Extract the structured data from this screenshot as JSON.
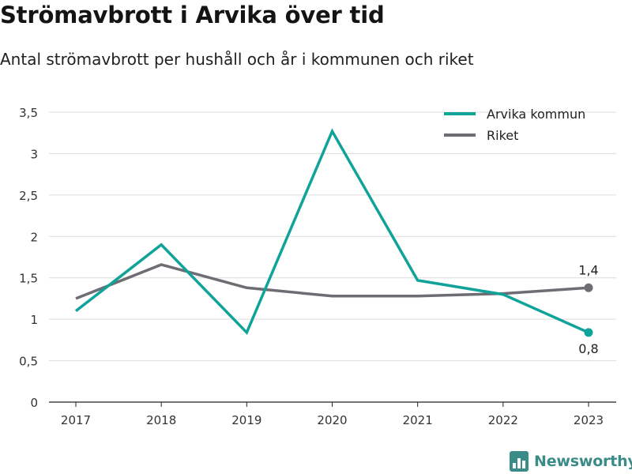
{
  "header": {
    "title": "Strömavbrott i Arvika över tid",
    "subtitle": "Antal strömavbrott per hushåll och år i kommunen och riket"
  },
  "brand": {
    "name": "Newsworthy",
    "icon": "bar-chart-logo-icon",
    "color": "#3a8c88"
  },
  "chart_data": {
    "type": "line",
    "x": [
      "2017",
      "2018",
      "2019",
      "2020",
      "2021",
      "2022",
      "2023"
    ],
    "ylim": [
      0,
      3.5
    ],
    "yticks": [
      "0",
      "0,5",
      "1",
      "1,5",
      "2",
      "2,5",
      "3",
      "3,5"
    ],
    "grid": true,
    "legend_position": "top-right",
    "series": [
      {
        "name": "Arvika kommun",
        "color": "#10a399",
        "values": [
          1.1,
          1.9,
          0.84,
          3.27,
          1.47,
          1.3,
          0.84
        ],
        "end_label": "0,8"
      },
      {
        "name": "Riket",
        "color": "#6e6d73",
        "values": [
          1.25,
          1.66,
          1.38,
          1.28,
          1.28,
          1.31,
          1.38
        ],
        "end_label": "1,4"
      }
    ]
  }
}
